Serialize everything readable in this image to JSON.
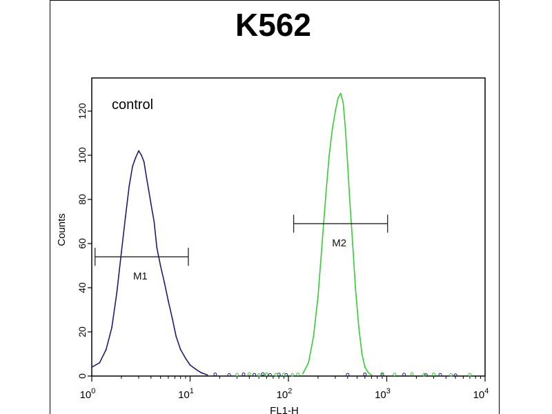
{
  "chart_data": {
    "type": "line",
    "title": "K562",
    "xlabel": "FL1-H",
    "ylabel": "Counts",
    "x_scale": "log",
    "xlim": [
      1,
      10000
    ],
    "ylim": [
      0,
      135
    ],
    "x_ticks": [
      {
        "value": 1,
        "base": "10",
        "exp": "0"
      },
      {
        "value": 10,
        "base": "10",
        "exp": "1"
      },
      {
        "value": 100,
        "base": "10",
        "exp": "2"
      },
      {
        "value": 1000,
        "base": "10",
        "exp": "3"
      },
      {
        "value": 10000,
        "base": "10",
        "exp": "4"
      }
    ],
    "y_ticks": [
      "0",
      "20",
      "40",
      "60",
      "80",
      "100",
      "120"
    ],
    "grid": false,
    "annotations": {
      "control": "control"
    },
    "markers": [
      {
        "label": "M1",
        "x_start": 1.08,
        "x_end": 9.6,
        "y": 54
      },
      {
        "label": "M2",
        "x_start": 113,
        "x_end": 1020,
        "y": 69
      }
    ],
    "series": [
      {
        "color": "#1c1c6e",
        "x": [
          1.0,
          1.2,
          1.4,
          1.6,
          1.8,
          2.0,
          2.2,
          2.4,
          2.6,
          2.8,
          3.0,
          3.2,
          3.4,
          3.6,
          3.8,
          4.0,
          4.3,
          4.6,
          5.0,
          5.5,
          6.0,
          6.6,
          7.2,
          8.0,
          9.0,
          10.0,
          11.5,
          13.0,
          15.0
        ],
        "y": [
          4,
          6,
          12,
          22,
          38,
          56,
          72,
          86,
          95,
          99,
          102,
          100,
          97,
          90,
          84,
          78,
          70,
          58,
          50,
          42,
          34,
          26,
          18,
          12,
          8,
          5,
          3,
          1.5,
          0.5
        ]
      },
      {
        "color": "#33cc33",
        "x": [
          140,
          160,
          180,
          200,
          220,
          240,
          260,
          280,
          300,
          320,
          340,
          360,
          380,
          400,
          420,
          450,
          480,
          520,
          560,
          600,
          650,
          700
        ],
        "y": [
          1,
          6,
          18,
          36,
          60,
          82,
          100,
          112,
          120,
          126,
          128,
          124,
          112,
          96,
          80,
          60,
          40,
          22,
          10,
          4,
          1.5,
          0.5
        ]
      }
    ],
    "noise_floor": [
      {
        "color": "#1c1c6e",
        "x": [
          18,
          25,
          35,
          45,
          55,
          65,
          80,
          95,
          400,
          600,
          900,
          1500,
          2500,
          3500,
          5000
        ],
        "y": [
          0.8,
          0.5,
          0.8,
          0.6,
          0.9,
          0.5,
          0.7,
          0.5,
          0.6,
          0.8,
          0.5,
          0.7,
          0.5,
          0.6,
          0.4
        ]
      },
      {
        "color": "#33cc33",
        "x": [
          30,
          40,
          50,
          60,
          75,
          90,
          110,
          125,
          900,
          1200,
          1800,
          2400,
          3000,
          4500,
          7000
        ],
        "y": [
          0.6,
          0.9,
          0.5,
          0.8,
          0.6,
          0.7,
          0.5,
          0.8,
          1.0,
          0.7,
          0.9,
          0.6,
          0.8,
          0.5,
          0.6
        ]
      }
    ]
  }
}
